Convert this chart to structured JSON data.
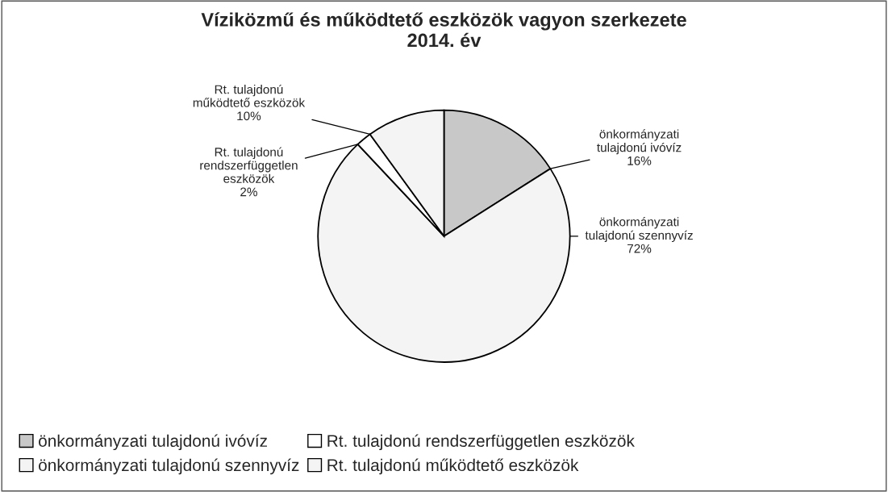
{
  "chart_data": {
    "type": "pie",
    "title": "Víziközmű és működtető eszközök vagyon szerkezete\n2014. év",
    "categories": [
      "önkormányzati tulajdonú ivóvíz",
      "önkormányzati tulajdonú szennyvíz",
      "Rt. tulajdonú rendszerfüggetlen eszközök",
      "Rt. tulajdonú működtető eszközök"
    ],
    "values": [
      16,
      72,
      2,
      10
    ],
    "colors": [
      "#c8c8c8",
      "#f4f4f4",
      "#ffffff",
      "#f4f4f4"
    ],
    "value_labels": [
      "16%",
      "72%",
      "2%",
      "10%"
    ],
    "legend": "bottom"
  }
}
